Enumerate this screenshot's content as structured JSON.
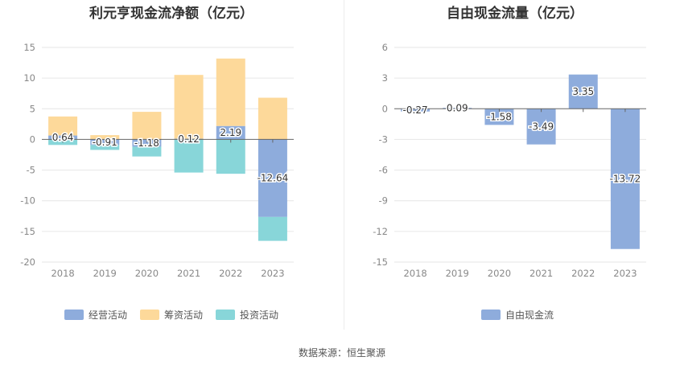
{
  "source_label": "数据来源：恒生聚源",
  "chart_data": [
    {
      "type": "bar",
      "stacked": true,
      "title": "利元亨现金流净额（亿元）",
      "categories": [
        "2018",
        "2019",
        "2020",
        "2021",
        "2022",
        "2023"
      ],
      "ylim": [
        -20,
        15
      ],
      "yticks": [
        15,
        10,
        5,
        0,
        -5,
        -10,
        -15,
        -20
      ],
      "grid": true,
      "legend_position": "bottom",
      "series": [
        {
          "name": "经营活动",
          "color": "#8eacdc",
          "values": [
            0.64,
            -0.91,
            -1.18,
            0.12,
            2.19,
            -12.64
          ],
          "show_labels": true
        },
        {
          "name": "筹资活动",
          "color": "#fdd99a",
          "values": [
            3.1,
            0.7,
            4.5,
            10.4,
            11.0,
            6.8
          ],
          "show_labels": false
        },
        {
          "name": "投资活动",
          "color": "#88d6d9",
          "values": [
            -0.9,
            -0.8,
            -1.6,
            -5.4,
            -5.6,
            -3.9
          ],
          "show_labels": false
        }
      ]
    },
    {
      "type": "bar",
      "title": "自由现金流量（亿元）",
      "categories": [
        "2018",
        "2019",
        "2020",
        "2021",
        "2022",
        "2023"
      ],
      "ylim": [
        -15,
        6
      ],
      "yticks": [
        6,
        3,
        0,
        -3,
        -6,
        -9,
        -12,
        -15
      ],
      "grid": true,
      "legend_position": "bottom",
      "series": [
        {
          "name": "自由现金流",
          "color": "#8eacdc",
          "values": [
            -0.27,
            0.09,
            -1.58,
            -3.49,
            3.35,
            -13.72
          ],
          "show_labels": true
        }
      ]
    }
  ]
}
